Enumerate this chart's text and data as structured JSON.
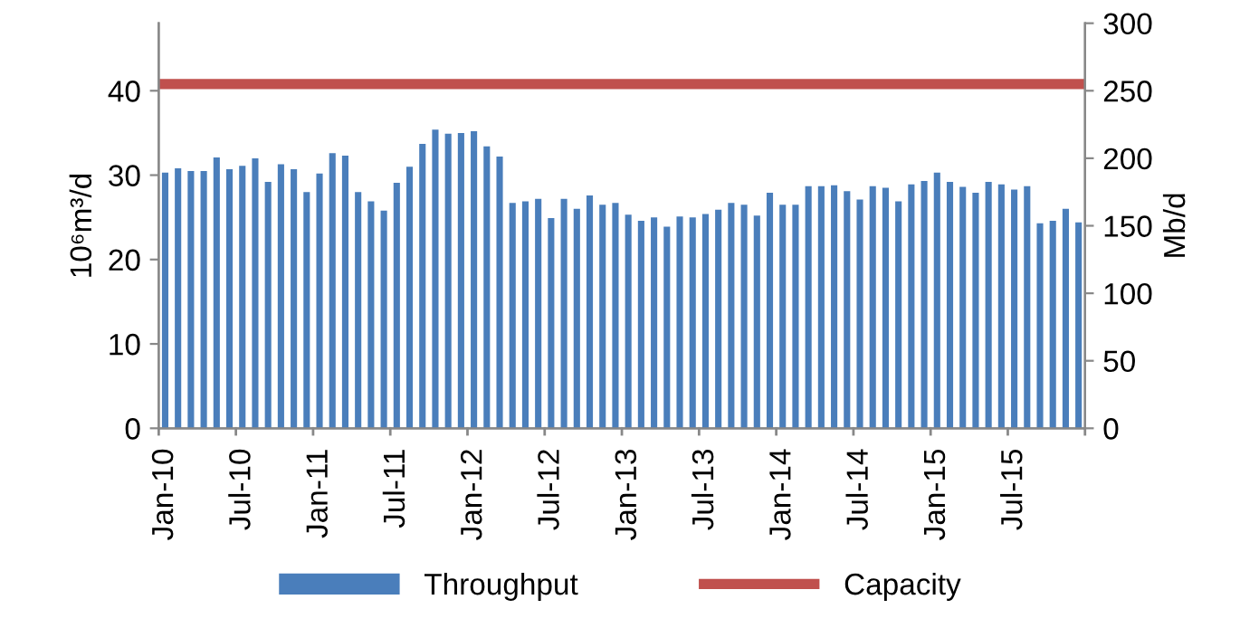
{
  "chart_data": {
    "type": "bar",
    "categories": [
      "Jan-10",
      null,
      null,
      null,
      null,
      null,
      "Jul-10",
      null,
      null,
      null,
      null,
      null,
      "Jan-11",
      null,
      null,
      null,
      null,
      null,
      "Jul-11",
      null,
      null,
      null,
      null,
      null,
      "Jan-12",
      null,
      null,
      null,
      null,
      null,
      "Jul-12",
      null,
      null,
      null,
      null,
      null,
      "Jan-13",
      null,
      null,
      null,
      null,
      null,
      "Jul-13",
      null,
      null,
      null,
      null,
      null,
      "Jan-14",
      null,
      null,
      null,
      null,
      null,
      "Jul-14",
      null,
      null,
      null,
      null,
      null,
      "Jan-15",
      null,
      null,
      null,
      null,
      null,
      "Jul-15",
      null,
      null,
      null,
      null,
      null
    ],
    "series": [
      {
        "name": "Throughput",
        "color": "#4a7ebb",
        "values": [
          30.3,
          30.8,
          30.5,
          30.5,
          32.1,
          30.7,
          31.1,
          32.0,
          29.2,
          31.3,
          30.7,
          28.0,
          30.2,
          32.6,
          32.3,
          28.0,
          26.9,
          25.8,
          29.1,
          31.0,
          33.7,
          35.4,
          34.9,
          35.0,
          35.2,
          33.4,
          32.2,
          26.7,
          26.9,
          27.2,
          24.9,
          27.2,
          26.0,
          27.6,
          26.5,
          26.7,
          25.3,
          24.6,
          25.0,
          23.9,
          25.1,
          25.0,
          25.4,
          25.9,
          26.7,
          26.5,
          25.2,
          27.9,
          26.5,
          26.5,
          28.7,
          28.7,
          28.8,
          28.1,
          27.1,
          28.7,
          28.5,
          26.9,
          28.9,
          29.3,
          30.3,
          29.2,
          28.6,
          27.9,
          29.2,
          28.9,
          28.3,
          28.7,
          24.3,
          24.6,
          26.0,
          24.4
        ]
      }
    ],
    "ref_lines": [
      {
        "axis": "y2",
        "value": 255,
        "label": "Capacity",
        "color": "#c0504d",
        "line_style": "solid"
      }
    ],
    "ylabel": "10⁶m³/d",
    "y2label": "Mb/d",
    "ylim": [
      0,
      48
    ],
    "yticks": [
      0,
      10,
      20,
      30,
      40
    ],
    "y2lim": [
      0,
      300
    ],
    "y2ticks": [
      0,
      50,
      100,
      150,
      200,
      250,
      300
    ],
    "grid": false,
    "legend": "bottom"
  }
}
